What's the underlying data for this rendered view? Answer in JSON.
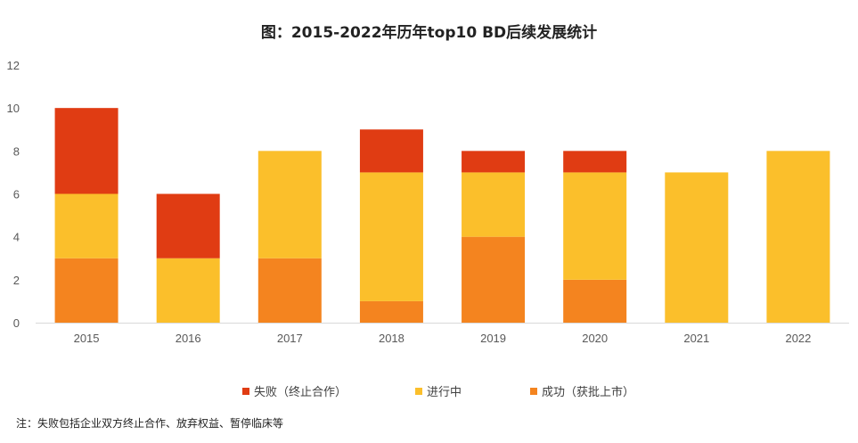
{
  "chart_data": {
    "type": "bar",
    "stacked": true,
    "title": "图：2015-2022年历年top10 BD后续发展统计",
    "xlabel": "",
    "ylabel": "",
    "ylim": [
      0,
      12
    ],
    "yticks": [
      0,
      2,
      4,
      6,
      8,
      10,
      12
    ],
    "categories": [
      "2015",
      "2016",
      "2017",
      "2018",
      "2019",
      "2020",
      "2021",
      "2022"
    ],
    "series": [
      {
        "name": "成功（获批上市）",
        "color": "#F4841F",
        "values": [
          3,
          0,
          3,
          1,
          4,
          2,
          0,
          0
        ]
      },
      {
        "name": "进行中",
        "color": "#FBBF2B",
        "values": [
          3,
          3,
          5,
          6,
          3,
          5,
          7,
          8
        ]
      },
      {
        "name": "失败（终止合作）",
        "color": "#E03C13",
        "values": [
          4,
          3,
          0,
          2,
          1,
          1,
          0,
          0
        ]
      }
    ],
    "legend_order": [
      "失败（终止合作）",
      "进行中",
      "成功（获批上市）"
    ],
    "legend_position": "bottom",
    "grid": false
  },
  "footnote": "注：失败包括企业双方终止合作、放弃权益、暂停临床等"
}
